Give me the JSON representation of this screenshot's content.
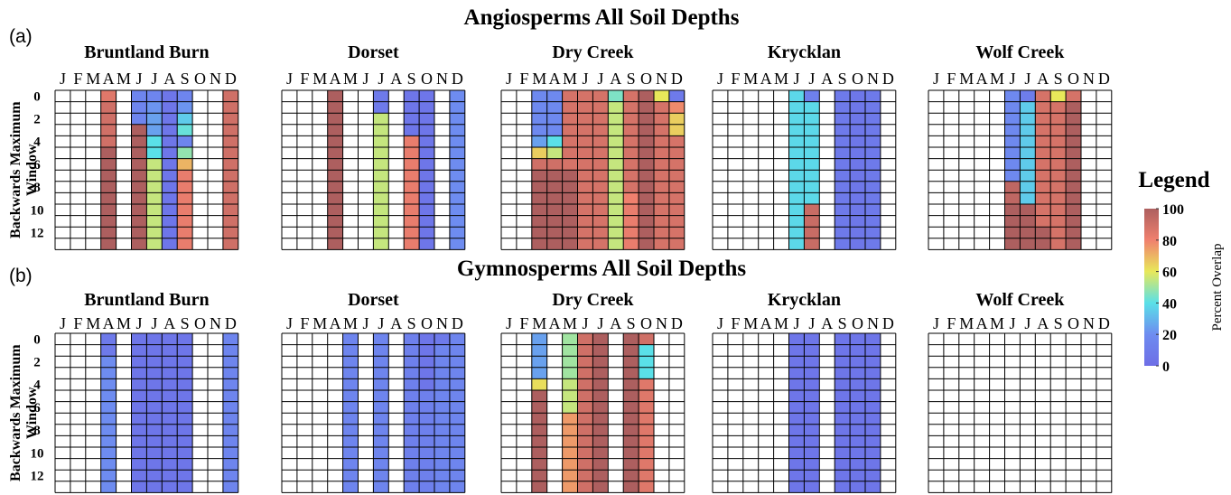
{
  "chart_data": {
    "type": "heatmap",
    "months": [
      "J",
      "F",
      "M",
      "A",
      "M",
      "J",
      "J",
      "A",
      "S",
      "O",
      "N",
      "D"
    ],
    "windows": [
      0,
      1,
      2,
      3,
      4,
      5,
      6,
      7,
      8,
      9,
      10,
      11,
      12,
      13
    ],
    "y_ticks": [
      0,
      2,
      4,
      6,
      8,
      10,
      12
    ],
    "ylabel": "Backwards Maximum Window",
    "legend": {
      "title": "Legend",
      "label": "Percent Overlap",
      "ticks": [
        0,
        20,
        40,
        60,
        80,
        100
      ],
      "range": [
        0,
        100
      ],
      "colors": [
        "#6e6ee6",
        "#5ae0e8",
        "#e8e85a",
        "#f0806e",
        "#ad5f5f"
      ]
    },
    "panels": [
      {
        "letter": "(a)",
        "title": "Angiosperms All Soil Depths",
        "sites": [
          {
            "name": "Bruntland Burn",
            "columns": [
              {
                "month": 4,
                "runs": [
                  [
                    0,
                    1,
                    85
                  ],
                  [
                    1,
                    5,
                    90
                  ],
                  [
                    5,
                    14,
                    100
                  ]
                ]
              },
              {
                "month": 6,
                "runs": [
                  [
                    0,
                    3,
                    15
                  ],
                  [
                    3,
                    14,
                    100
                  ]
                ]
              },
              {
                "month": 7,
                "runs": [
                  [
                    0,
                    1,
                    15
                  ],
                  [
                    1,
                    2,
                    22
                  ],
                  [
                    2,
                    4,
                    25
                  ],
                  [
                    4,
                    6,
                    40
                  ],
                  [
                    6,
                    14,
                    55
                  ]
                ]
              },
              {
                "month": 8,
                "runs": [
                  [
                    0,
                    14,
                    5
                  ]
                ]
              },
              {
                "month": 9,
                "runs": [
                  [
                    0,
                    1,
                    15
                  ],
                  [
                    1,
                    2,
                    22
                  ],
                  [
                    2,
                    3,
                    35
                  ],
                  [
                    3,
                    4,
                    42
                  ],
                  [
                    4,
                    5,
                    15
                  ],
                  [
                    5,
                    6,
                    48
                  ],
                  [
                    6,
                    7,
                    70
                  ],
                  [
                    7,
                    14,
                    82
                  ]
                ]
              },
              {
                "month": 12,
                "runs": [
                  [
                    0,
                    14,
                    90
                  ]
                ]
              }
            ]
          },
          {
            "name": "Dorset",
            "columns": [
              {
                "month": 4,
                "runs": [
                  [
                    0,
                    14,
                    100
                  ]
                ]
              },
              {
                "month": 7,
                "runs": [
                  [
                    0,
                    2,
                    8
                  ],
                  [
                    2,
                    14,
                    55
                  ]
                ]
              },
              {
                "month": 9,
                "runs": [
                  [
                    0,
                    4,
                    5
                  ],
                  [
                    4,
                    14,
                    82
                  ]
                ]
              },
              {
                "month": 10,
                "runs": [
                  [
                    0,
                    14,
                    5
                  ]
                ]
              },
              {
                "month": 12,
                "runs": [
                  [
                    0,
                    14,
                    20
                  ]
                ]
              }
            ]
          },
          {
            "name": "Dry Creek",
            "columns": [
              {
                "month": 3,
                "runs": [
                  [
                    0,
                    4,
                    18
                  ],
                  [
                    4,
                    5,
                    25
                  ],
                  [
                    5,
                    6,
                    65
                  ],
                  [
                    6,
                    7,
                    90
                  ],
                  [
                    7,
                    14,
                    100
                  ]
                ]
              },
              {
                "month": 4,
                "runs": [
                  [
                    0,
                    4,
                    18
                  ],
                  [
                    4,
                    5,
                    40
                  ],
                  [
                    5,
                    6,
                    55
                  ],
                  [
                    6,
                    7,
                    90
                  ],
                  [
                    7,
                    14,
                    100
                  ]
                ]
              },
              {
                "month": 5,
                "runs": [
                  [
                    0,
                    7,
                    88
                  ],
                  [
                    7,
                    14,
                    100
                  ]
                ]
              },
              {
                "month": 6,
                "runs": [
                  [
                    0,
                    14,
                    88
                  ]
                ]
              },
              {
                "month": 7,
                "runs": [
                  [
                    0,
                    14,
                    88
                  ]
                ]
              },
              {
                "month": 8,
                "runs": [
                  [
                    0,
                    1,
                    45
                  ],
                  [
                    1,
                    14,
                    55
                  ]
                ]
              },
              {
                "month": 9,
                "runs": [
                  [
                    0,
                    9,
                    88
                  ],
                  [
                    9,
                    10,
                    80
                  ],
                  [
                    10,
                    14,
                    82
                  ]
                ]
              },
              {
                "month": 10,
                "runs": [
                  [
                    0,
                    14,
                    100
                  ]
                ]
              },
              {
                "month": 11,
                "runs": [
                  [
                    0,
                    1,
                    60
                  ],
                  [
                    1,
                    14,
                    88
                  ]
                ]
              },
              {
                "month": 12,
                "runs": [
                  [
                    0,
                    1,
                    8
                  ],
                  [
                    1,
                    2,
                    78
                  ],
                  [
                    2,
                    4,
                    65
                  ],
                  [
                    4,
                    14,
                    88
                  ]
                ]
              }
            ]
          },
          {
            "name": "Krycklan",
            "columns": [
              {
                "month": 6,
                "runs": [
                  [
                    0,
                    14,
                    38
                  ]
                ]
              },
              {
                "month": 7,
                "runs": [
                  [
                    0,
                    1,
                    12
                  ],
                  [
                    1,
                    10,
                    38
                  ],
                  [
                    10,
                    14,
                    92
                  ]
                ]
              },
              {
                "month": 9,
                "runs": [
                  [
                    0,
                    14,
                    8
                  ]
                ]
              },
              {
                "month": 10,
                "runs": [
                  [
                    0,
                    14,
                    6
                  ]
                ]
              },
              {
                "month": 11,
                "runs": [
                  [
                    0,
                    14,
                    8
                  ]
                ]
              }
            ]
          },
          {
            "name": "Wolf Creek",
            "columns": [
              {
                "month": 6,
                "runs": [
                  [
                    0,
                    8,
                    18
                  ],
                  [
                    8,
                    10,
                    95
                  ],
                  [
                    10,
                    14,
                    100
                  ]
                ]
              },
              {
                "month": 7,
                "runs": [
                  [
                    0,
                    1,
                    10
                  ],
                  [
                    1,
                    10,
                    35
                  ],
                  [
                    10,
                    14,
                    100
                  ]
                ]
              },
              {
                "month": 8,
                "runs": [
                  [
                    0,
                    12,
                    88
                  ],
                  [
                    12,
                    14,
                    100
                  ]
                ]
              },
              {
                "month": 9,
                "runs": [
                  [
                    0,
                    1,
                    60
                  ],
                  [
                    1,
                    14,
                    88
                  ]
                ]
              },
              {
                "month": 10,
                "runs": [
                  [
                    0,
                    1,
                    88
                  ],
                  [
                    1,
                    14,
                    100
                  ]
                ]
              }
            ]
          }
        ]
      },
      {
        "letter": "(b)",
        "title": "Gymnosperms All Soil Depths",
        "sites": [
          {
            "name": "Bruntland Burn",
            "columns": [
              {
                "month": 4,
                "runs": [
                  [
                    0,
                    2,
                    8
                  ],
                  [
                    2,
                    14,
                    20
                  ]
                ]
              },
              {
                "month": 6,
                "runs": [
                  [
                    0,
                    14,
                    5
                  ]
                ]
              },
              {
                "month": 7,
                "runs": [
                  [
                    0,
                    14,
                    5
                  ]
                ]
              },
              {
                "month": 8,
                "runs": [
                  [
                    0,
                    14,
                    5
                  ]
                ]
              },
              {
                "month": 9,
                "runs": [
                  [
                    0,
                    14,
                    5
                  ]
                ]
              },
              {
                "month": 12,
                "runs": [
                  [
                    0,
                    14,
                    15
                  ]
                ]
              }
            ]
          },
          {
            "name": "Dorset",
            "columns": [
              {
                "month": 5,
                "runs": [
                  [
                    0,
                    14,
                    15
                  ]
                ]
              },
              {
                "month": 7,
                "runs": [
                  [
                    0,
                    14,
                    15
                  ]
                ]
              },
              {
                "month": 9,
                "runs": [
                  [
                    0,
                    14,
                    12
                  ]
                ]
              },
              {
                "month": 10,
                "runs": [
                  [
                    0,
                    5,
                    5
                  ],
                  [
                    5,
                    14,
                    12
                  ]
                ]
              },
              {
                "month": 11,
                "runs": [
                  [
                    0,
                    1,
                    8
                  ],
                  [
                    1,
                    14,
                    15
                  ]
                ]
              },
              {
                "month": 12,
                "runs": [
                  [
                    0,
                    14,
                    15
                  ]
                ]
              }
            ]
          },
          {
            "name": "Dry Creek",
            "columns": [
              {
                "month": 3,
                "runs": [
                  [
                    0,
                    4,
                    25
                  ],
                  [
                    4,
                    5,
                    62
                  ],
                  [
                    5,
                    14,
                    100
                  ]
                ]
              },
              {
                "month": 5,
                "runs": [
                  [
                    0,
                    4,
                    50
                  ],
                  [
                    4,
                    7,
                    55
                  ],
                  [
                    7,
                    14,
                    75
                  ]
                ]
              },
              {
                "month": 6,
                "runs": [
                  [
                    0,
                    14,
                    90
                  ]
                ]
              },
              {
                "month": 7,
                "runs": [
                  [
                    0,
                    14,
                    100
                  ]
                ]
              },
              {
                "month": 9,
                "runs": [
                  [
                    0,
                    14,
                    100
                  ]
                ]
              },
              {
                "month": 10,
                "runs": [
                  [
                    0,
                    1,
                    90
                  ],
                  [
                    1,
                    4,
                    40
                  ],
                  [
                    4,
                    14,
                    85
                  ]
                ]
              }
            ]
          },
          {
            "name": "Krycklan",
            "columns": [
              {
                "month": 6,
                "runs": [
                  [
                    0,
                    14,
                    5
                  ]
                ]
              },
              {
                "month": 7,
                "runs": [
                  [
                    0,
                    14,
                    5
                  ]
                ]
              },
              {
                "month": 9,
                "runs": [
                  [
                    0,
                    14,
                    5
                  ]
                ]
              },
              {
                "month": 10,
                "runs": [
                  [
                    0,
                    14,
                    5
                  ]
                ]
              },
              {
                "month": 11,
                "runs": [
                  [
                    0,
                    14,
                    5
                  ]
                ]
              }
            ]
          },
          {
            "name": "Wolf Creek",
            "columns": []
          }
        ]
      }
    ]
  }
}
